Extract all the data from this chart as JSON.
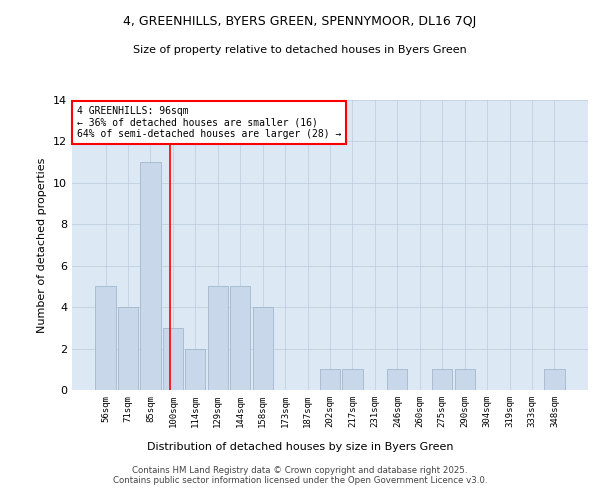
{
  "title1": "4, GREENHILLS, BYERS GREEN, SPENNYMOOR, DL16 7QJ",
  "title2": "Size of property relative to detached houses in Byers Green",
  "xlabel": "Distribution of detached houses by size in Byers Green",
  "ylabel": "Number of detached properties",
  "categories": [
    "56sqm",
    "71sqm",
    "85sqm",
    "100sqm",
    "114sqm",
    "129sqm",
    "144sqm",
    "158sqm",
    "173sqm",
    "187sqm",
    "202sqm",
    "217sqm",
    "231sqm",
    "246sqm",
    "260sqm",
    "275sqm",
    "290sqm",
    "304sqm",
    "319sqm",
    "333sqm",
    "348sqm"
  ],
  "values": [
    5,
    4,
    11,
    3,
    2,
    5,
    5,
    4,
    0,
    0,
    1,
    1,
    0,
    1,
    0,
    1,
    1,
    0,
    0,
    0,
    1
  ],
  "bar_color": "#c8d8ea",
  "bar_edge_color": "#9ab0c8",
  "grid_color": "#bbccdd",
  "bg_color": "#dce8f4",
  "red_line_x": 2.85,
  "annotation_text": "4 GREENHILLS: 96sqm\n← 36% of detached houses are smaller (16)\n64% of semi-detached houses are larger (28) →",
  "annotation_box_color": "white",
  "annotation_edge_color": "red",
  "ylim": [
    0,
    14
  ],
  "yticks": [
    0,
    2,
    4,
    6,
    8,
    10,
    12,
    14
  ],
  "footer1": "Contains HM Land Registry data © Crown copyright and database right 2025.",
  "footer2": "Contains public sector information licensed under the Open Government Licence v3.0."
}
